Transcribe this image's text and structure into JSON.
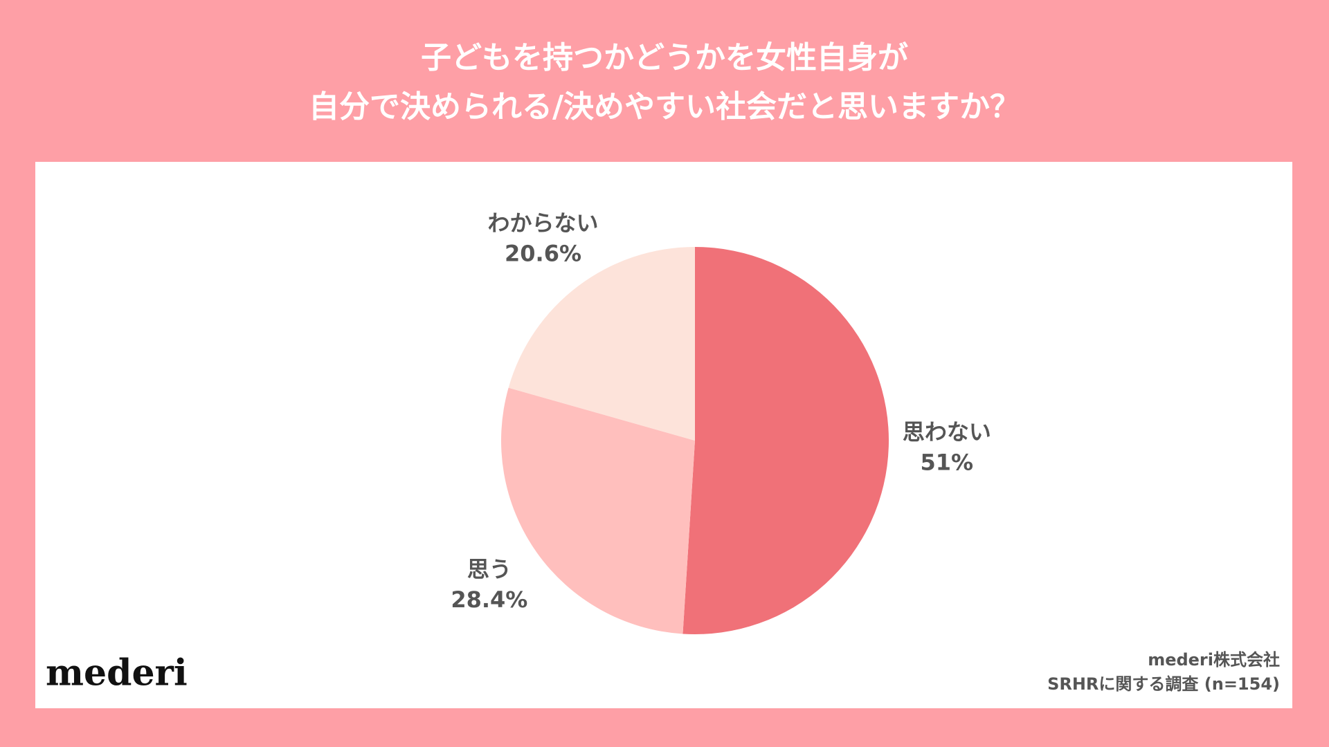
{
  "chart_data": {
    "type": "pie",
    "title": [
      "子どもを持つかどうかを女性自身が",
      "自分で決められる/決めやすい社会だと思いますか？"
    ],
    "categories": [
      "思わない",
      "思う",
      "わからない"
    ],
    "values": [
      51,
      28.4,
      20.6
    ],
    "value_labels": [
      "51%",
      "28.4%",
      "20.6%"
    ],
    "colors": [
      "#f07178",
      "#ffbfbd",
      "#fde3da"
    ]
  },
  "logo": "mederi",
  "source": [
    "mederi株式会社",
    "SRHRに関する調査 (n=154)"
  ]
}
